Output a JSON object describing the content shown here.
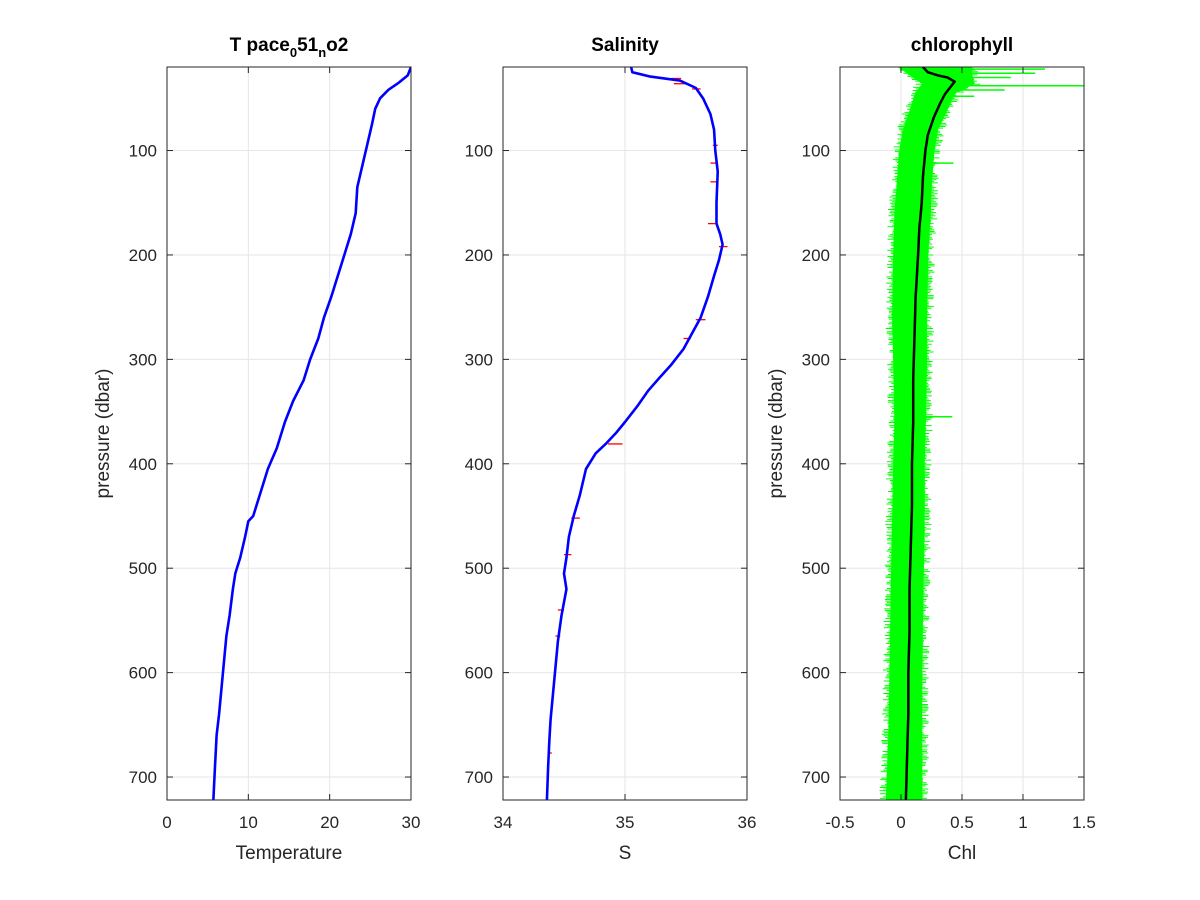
{
  "chart_data": [
    {
      "type": "line",
      "title": {
        "base": "T pace",
        "sub1": "0",
        "mid": "51",
        "sub2": "n",
        "tail": "o2"
      },
      "xlabel": "Temperature",
      "ylabel": "pressure (dbar)",
      "xlim": [
        0,
        30
      ],
      "ylim": [
        20,
        722
      ],
      "y_reversed": true,
      "grid": true,
      "x_ticks": [
        0,
        10,
        20,
        30
      ],
      "x_tick_labels": [
        "0",
        "10",
        "20",
        "30"
      ],
      "y_ticks": [
        100,
        200,
        300,
        400,
        500,
        600,
        700
      ],
      "y_tick_labels": [
        "100",
        "200",
        "300",
        "400",
        "500",
        "600",
        "700"
      ],
      "series": [
        {
          "color": "#0000ff",
          "points": [
            [
              30,
              20
            ],
            [
              29.6,
              28
            ],
            [
              28.5,
              35
            ],
            [
              27.2,
              42
            ],
            [
              26.2,
              50
            ],
            [
              25.6,
              60
            ],
            [
              25.2,
              75
            ],
            [
              24.6,
              95
            ],
            [
              24,
              115
            ],
            [
              23.4,
              135
            ],
            [
              23.2,
              160
            ],
            [
              22.6,
              180
            ],
            [
              21.8,
              200
            ],
            [
              21,
              220
            ],
            [
              20.2,
              240
            ],
            [
              19.3,
              260
            ],
            [
              18.6,
              280
            ],
            [
              17.6,
              300
            ],
            [
              16.8,
              320
            ],
            [
              15.5,
              340
            ],
            [
              14.5,
              360
            ],
            [
              13.5,
              385
            ],
            [
              12.4,
              405
            ],
            [
              11.4,
              430
            ],
            [
              10.6,
              450
            ],
            [
              10,
              455
            ],
            [
              9.6,
              470
            ],
            [
              9,
              490
            ],
            [
              8.4,
              505
            ],
            [
              8.1,
              520
            ],
            [
              7.7,
              545
            ],
            [
              7.3,
              565
            ],
            [
              7,
              590
            ],
            [
              6.7,
              615
            ],
            [
              6.4,
              640
            ],
            [
              6.1,
              660
            ],
            [
              5.9,
              690
            ],
            [
              5.7,
              722
            ]
          ]
        }
      ]
    },
    {
      "type": "line",
      "title": "Salinity",
      "xlabel": "S",
      "xlim": [
        34,
        36
      ],
      "ylim": [
        20,
        722
      ],
      "y_reversed": true,
      "grid": true,
      "x_ticks": [
        34,
        35,
        36
      ],
      "x_tick_labels": [
        "34",
        "35",
        "36"
      ],
      "y_ticks": [
        100,
        200,
        300,
        400,
        500,
        600,
        700
      ],
      "y_tick_labels": [
        "100",
        "200",
        "300",
        "400",
        "500",
        "600",
        "700"
      ],
      "series": [
        {
          "color": "#ff0000",
          "segments": [
            [
              [
                35.38,
                31
              ],
              [
                35.46,
                31
              ]
            ],
            [
              [
                35.4,
                36
              ],
              [
                35.5,
                36
              ]
            ],
            [
              [
                35.55,
                41
              ],
              [
                35.62,
                41
              ]
            ],
            [
              [
                35.72,
                95
              ],
              [
                35.76,
                95
              ]
            ],
            [
              [
                35.7,
                112
              ],
              [
                35.76,
                112
              ]
            ],
            [
              [
                35.7,
                130
              ],
              [
                35.75,
                130
              ]
            ],
            [
              [
                35.68,
                170
              ],
              [
                35.74,
                170
              ]
            ],
            [
              [
                35.77,
                192
              ],
              [
                35.84,
                192
              ]
            ],
            [
              [
                35.58,
                262
              ],
              [
                35.66,
                262
              ]
            ],
            [
              [
                35.48,
                280
              ],
              [
                35.54,
                280
              ]
            ],
            [
              [
                34.86,
                381
              ],
              [
                34.98,
                381
              ]
            ],
            [
              [
                34.56,
                452
              ],
              [
                34.63,
                452
              ]
            ],
            [
              [
                34.5,
                487
              ],
              [
                34.56,
                487
              ]
            ],
            [
              [
                34.45,
                540
              ],
              [
                34.5,
                540
              ]
            ],
            [
              [
                34.43,
                565
              ],
              [
                34.47,
                565
              ]
            ],
            [
              [
                34.37,
                677
              ],
              [
                34.4,
                677
              ]
            ]
          ]
        },
        {
          "color": "#0000ff",
          "points": [
            [
              35.05,
              20
            ],
            [
              35.06,
              25
            ],
            [
              35.2,
              29
            ],
            [
              35.45,
              33
            ],
            [
              35.58,
              40
            ],
            [
              35.64,
              50
            ],
            [
              35.7,
              65
            ],
            [
              35.73,
              80
            ],
            [
              35.74,
              100
            ],
            [
              35.76,
              120
            ],
            [
              35.75,
              150
            ],
            [
              35.75,
              170
            ],
            [
              35.78,
              180
            ],
            [
              35.8,
              190
            ],
            [
              35.77,
              205
            ],
            [
              35.73,
              220
            ],
            [
              35.68,
              240
            ],
            [
              35.62,
              260
            ],
            [
              35.55,
              275
            ],
            [
              35.48,
              290
            ],
            [
              35.38,
              305
            ],
            [
              35.28,
              318
            ],
            [
              35.19,
              330
            ],
            [
              35.1,
              345
            ],
            [
              35,
              360
            ],
            [
              34.93,
              370
            ],
            [
              34.85,
              380
            ],
            [
              34.76,
              390
            ],
            [
              34.68,
              405
            ],
            [
              34.63,
              430
            ],
            [
              34.58,
              450
            ],
            [
              34.54,
              470
            ],
            [
              34.52,
              490
            ],
            [
              34.5,
              505
            ],
            [
              34.52,
              520
            ],
            [
              34.48,
              545
            ],
            [
              34.45,
              570
            ],
            [
              34.43,
              595
            ],
            [
              34.41,
              620
            ],
            [
              34.39,
              645
            ],
            [
              34.38,
              665
            ],
            [
              34.37,
              690
            ],
            [
              34.36,
              722
            ]
          ]
        }
      ]
    },
    {
      "type": "line",
      "title": "chlorophyll",
      "xlabel": "Chl",
      "ylabel": "pressure (dbar)",
      "xlim": [
        -0.5,
        1.5
      ],
      "ylim": [
        20,
        722
      ],
      "y_reversed": true,
      "grid": true,
      "x_ticks": [
        -0.5,
        0,
        0.5,
        1,
        1.5
      ],
      "x_tick_labels": [
        "-0.5",
        "0",
        "0.5",
        "1",
        "1.5"
      ],
      "y_ticks": [
        100,
        200,
        300,
        400,
        500,
        600,
        700
      ],
      "y_tick_labels": [
        "100",
        "200",
        "300",
        "400",
        "500",
        "600",
        "700"
      ],
      "series": [
        {
          "color": "#00ff00",
          "band": [
            [
              20,
              -0.02,
              0.58
            ],
            [
              28,
              0.08,
              0.58
            ],
            [
              36,
              0.18,
              0.6
            ],
            [
              45,
              0.12,
              0.44
            ],
            [
              60,
              0.08,
              0.38
            ],
            [
              80,
              0.02,
              0.3
            ],
            [
              100,
              -0.01,
              0.27
            ],
            [
              130,
              -0.03,
              0.25
            ],
            [
              160,
              -0.05,
              0.24
            ],
            [
              200,
              -0.06,
              0.22
            ],
            [
              260,
              -0.07,
              0.21
            ],
            [
              300,
              -0.06,
              0.21
            ],
            [
              360,
              -0.05,
              0.2
            ],
            [
              400,
              -0.06,
              0.19
            ],
            [
              460,
              -0.07,
              0.19
            ],
            [
              520,
              -0.08,
              0.18
            ],
            [
              600,
              -0.09,
              0.17
            ],
            [
              660,
              -0.1,
              0.17
            ],
            [
              722,
              -0.12,
              0.17
            ]
          ],
          "spikes": [
            [
              22,
              1.18
            ],
            [
              26,
              1.1
            ],
            [
              30,
              0.9
            ],
            [
              38,
              1.5
            ],
            [
              42,
              0.85
            ],
            [
              48,
              0.6
            ],
            [
              112,
              0.43
            ],
            [
              355,
              0.42
            ]
          ]
        },
        {
          "color": "#000000",
          "points": [
            [
              0.18,
              20
            ],
            [
              0.22,
              25
            ],
            [
              0.3,
              28
            ],
            [
              0.38,
              30
            ],
            [
              0.44,
              34
            ],
            [
              0.4,
              40
            ],
            [
              0.36,
              46
            ],
            [
              0.32,
              55
            ],
            [
              0.27,
              68
            ],
            [
              0.22,
              85
            ],
            [
              0.2,
              100
            ],
            [
              0.18,
              125
            ],
            [
              0.17,
              150
            ],
            [
              0.15,
              175
            ],
            [
              0.14,
              200
            ],
            [
              0.12,
              240
            ],
            [
              0.11,
              280
            ],
            [
              0.1,
              320
            ],
            [
              0.1,
              360
            ],
            [
              0.09,
              400
            ],
            [
              0.09,
              440
            ],
            [
              0.08,
              480
            ],
            [
              0.07,
              520
            ],
            [
              0.07,
              560
            ],
            [
              0.06,
              600
            ],
            [
              0.06,
              640
            ],
            [
              0.05,
              680
            ],
            [
              0.04,
              722
            ]
          ]
        }
      ]
    }
  ]
}
